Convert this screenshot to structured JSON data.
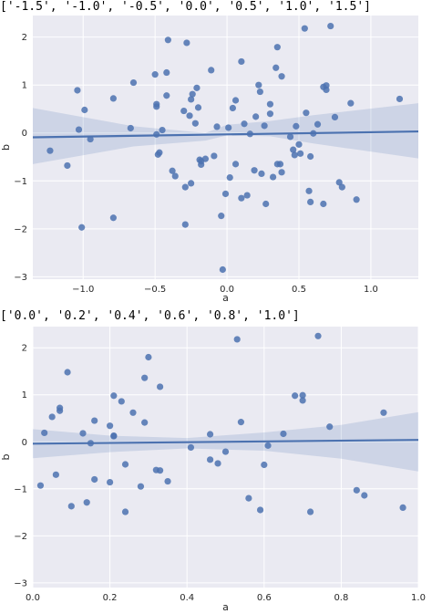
{
  "header_top": "['-1.5', '-1.0', '-0.5', '0.0', '0.5', '1.0', '1.5']",
  "header_bottom": "['0.0', '0.2', '0.4', '0.6', '0.8', '1.0']",
  "colors": {
    "background": "#EAEAF2",
    "grid": "#FFFFFF",
    "points": "#4C72B0",
    "line": "#4C72B0",
    "band": "#4C72B0"
  },
  "chart_data": [
    {
      "type": "scatter",
      "title": "",
      "xlabel": "a",
      "ylabel": "b",
      "xlim": [
        -1.35,
        1.33
      ],
      "ylim": [
        -3.05,
        2.45
      ],
      "xticks": [
        -1.0,
        -0.5,
        0.0,
        0.5,
        1.0
      ],
      "xtick_labels": [
        "−1.0",
        "−0.5",
        "0.0",
        "0.5",
        "1.0"
      ],
      "yticks": [
        -3,
        -2,
        -1,
        0,
        1,
        2
      ],
      "ytick_labels": [
        "−3",
        "−2",
        "−1",
        "0",
        "1",
        "2"
      ],
      "grid": true,
      "regression": {
        "x0": -1.35,
        "x1": 1.33,
        "y0": -0.09,
        "y1": 0.03,
        "band": [
          [
            -1.35,
            -0.65,
            0.52
          ],
          [
            -0.65,
            -0.28,
            0.14
          ],
          [
            -0.15,
            -0.16,
            0.0
          ],
          [
            0.0,
            -0.05,
            0.17
          ],
          [
            0.3,
            -0.07,
            0.25
          ],
          [
            0.6,
            -0.22,
            0.37
          ],
          [
            1.33,
            -0.53,
            0.62
          ]
        ]
      },
      "points": [
        [
          -1.23,
          -0.37
        ],
        [
          -1.11,
          -0.68
        ],
        [
          -1.04,
          0.89
        ],
        [
          -1.03,
          0.07
        ],
        [
          -1.01,
          -1.97
        ],
        [
          -0.99,
          0.48
        ],
        [
          -0.95,
          -0.13
        ],
        [
          -0.79,
          0.72
        ],
        [
          -0.79,
          -1.77
        ],
        [
          -0.67,
          0.1
        ],
        [
          -0.65,
          1.05
        ],
        [
          -0.5,
          1.22
        ],
        [
          -0.49,
          0.6
        ],
        [
          -0.49,
          0.55
        ],
        [
          -0.48,
          -0.45
        ],
        [
          -0.49,
          -0.03
        ],
        [
          -0.47,
          -0.41
        ],
        [
          -0.45,
          0.06
        ],
        [
          -0.42,
          0.78
        ],
        [
          -0.42,
          1.26
        ],
        [
          -0.41,
          1.94
        ],
        [
          -0.38,
          -0.79
        ],
        [
          -0.36,
          -0.9
        ],
        [
          -0.3,
          0.46
        ],
        [
          -0.29,
          -1.13
        ],
        [
          -0.29,
          -1.91
        ],
        [
          -0.28,
          1.88
        ],
        [
          -0.26,
          0.36
        ],
        [
          -0.25,
          0.7
        ],
        [
          -0.25,
          -1.05
        ],
        [
          -0.24,
          0.81
        ],
        [
          -0.22,
          0.2
        ],
        [
          -0.21,
          0.94
        ],
        [
          -0.2,
          0.53
        ],
        [
          -0.19,
          -0.56
        ],
        [
          -0.18,
          -0.66
        ],
        [
          -0.18,
          -0.59
        ],
        [
          -0.15,
          -0.54
        ],
        [
          -0.11,
          1.31
        ],
        [
          -0.09,
          -0.48
        ],
        [
          -0.07,
          0.13
        ],
        [
          -0.04,
          -1.73
        ],
        [
          -0.03,
          -2.85
        ],
        [
          -0.01,
          -1.27
        ],
        [
          0.01,
          0.11
        ],
        [
          0.02,
          -0.93
        ],
        [
          0.04,
          0.52
        ],
        [
          0.06,
          0.68
        ],
        [
          0.06,
          -0.65
        ],
        [
          0.1,
          1.49
        ],
        [
          0.1,
          -1.36
        ],
        [
          0.12,
          0.19
        ],
        [
          0.14,
          -1.3
        ],
        [
          0.16,
          -0.02
        ],
        [
          0.19,
          -0.78
        ],
        [
          0.2,
          0.34
        ],
        [
          0.22,
          1.0
        ],
        [
          0.23,
          0.86
        ],
        [
          0.24,
          -0.85
        ],
        [
          0.26,
          0.15
        ],
        [
          0.27,
          -1.48
        ],
        [
          0.3,
          0.4
        ],
        [
          0.3,
          0.6
        ],
        [
          0.32,
          -0.92
        ],
        [
          0.34,
          1.36
        ],
        [
          0.35,
          1.79
        ],
        [
          0.35,
          -0.65
        ],
        [
          0.37,
          -0.65
        ],
        [
          0.38,
          1.18
        ],
        [
          0.38,
          -0.82
        ],
        [
          0.44,
          -0.08
        ],
        [
          0.46,
          -0.35
        ],
        [
          0.47,
          -0.46
        ],
        [
          0.48,
          0.14
        ],
        [
          0.5,
          -0.24
        ],
        [
          0.51,
          -0.43
        ],
        [
          0.54,
          2.18
        ],
        [
          0.55,
          0.42
        ],
        [
          0.57,
          -1.21
        ],
        [
          0.58,
          -1.44
        ],
        [
          0.58,
          -0.49
        ],
        [
          0.6,
          -0.01
        ],
        [
          0.63,
          0.18
        ],
        [
          0.67,
          -1.48
        ],
        [
          0.67,
          0.96
        ],
        [
          0.69,
          0.99
        ],
        [
          0.69,
          0.9
        ],
        [
          0.72,
          2.23
        ],
        [
          0.75,
          0.33
        ],
        [
          0.78,
          -1.03
        ],
        [
          0.8,
          -1.13
        ],
        [
          0.86,
          0.62
        ],
        [
          0.9,
          -1.39
        ],
        [
          1.2,
          0.71
        ]
      ]
    },
    {
      "type": "scatter",
      "title": "",
      "xlabel": "a",
      "ylabel": "b",
      "xlim": [
        0.0,
        1.0
      ],
      "ylim": [
        -3.1,
        2.45
      ],
      "xticks": [
        0.0,
        0.2,
        0.4,
        0.6,
        0.8,
        1.0
      ],
      "xtick_labels": [
        "0.0",
        "0.2",
        "0.4",
        "0.6",
        "0.8",
        "1.0"
      ],
      "yticks": [
        -3,
        -2,
        -1,
        0,
        1,
        2
      ],
      "ytick_labels": [
        "−3",
        "−2",
        "−1",
        "0",
        "1",
        "2"
      ],
      "grid": true,
      "regression": {
        "x0": 0.0,
        "x1": 1.0,
        "y0": -0.04,
        "y1": 0.04,
        "band": [
          [
            0.0,
            -0.35,
            0.27
          ],
          [
            0.2,
            -0.22,
            0.13
          ],
          [
            0.4,
            -0.14,
            0.08
          ],
          [
            0.6,
            -0.19,
            0.2
          ],
          [
            0.8,
            -0.36,
            0.36
          ],
          [
            1.0,
            -0.63,
            0.63
          ]
        ]
      },
      "points": [
        [
          0.02,
          -0.93
        ],
        [
          0.03,
          0.19
        ],
        [
          0.05,
          0.53
        ],
        [
          0.06,
          -0.7
        ],
        [
          0.07,
          0.72
        ],
        [
          0.07,
          0.66
        ],
        [
          0.09,
          1.48
        ],
        [
          0.1,
          -1.37
        ],
        [
          0.13,
          0.18
        ],
        [
          0.14,
          -1.29
        ],
        [
          0.15,
          -0.03
        ],
        [
          0.16,
          0.45
        ],
        [
          0.16,
          -0.8
        ],
        [
          0.2,
          0.34
        ],
        [
          0.2,
          -0.86
        ],
        [
          0.21,
          0.98
        ],
        [
          0.21,
          0.13
        ],
        [
          0.21,
          0.12
        ],
        [
          0.23,
          0.86
        ],
        [
          0.24,
          -1.49
        ],
        [
          0.24,
          -0.48
        ],
        [
          0.26,
          0.62
        ],
        [
          0.28,
          -0.95
        ],
        [
          0.29,
          0.41
        ],
        [
          0.29,
          1.36
        ],
        [
          0.3,
          1.8
        ],
        [
          0.32,
          -0.6
        ],
        [
          0.33,
          1.17
        ],
        [
          0.33,
          -0.61
        ],
        [
          0.35,
          -0.84
        ],
        [
          0.41,
          -0.12
        ],
        [
          0.46,
          -0.38
        ],
        [
          0.46,
          0.16
        ],
        [
          0.48,
          -0.46
        ],
        [
          0.5,
          -0.21
        ],
        [
          0.53,
          2.18
        ],
        [
          0.54,
          0.42
        ],
        [
          0.56,
          -1.2
        ],
        [
          0.59,
          -1.45
        ],
        [
          0.6,
          -0.49
        ],
        [
          0.61,
          -0.08
        ],
        [
          0.65,
          0.17
        ],
        [
          0.68,
          0.98
        ],
        [
          0.7,
          0.99
        ],
        [
          0.7,
          0.88
        ],
        [
          0.72,
          -1.49
        ],
        [
          0.74,
          2.25
        ],
        [
          0.77,
          0.32
        ],
        [
          0.84,
          -1.03
        ],
        [
          0.86,
          -1.14
        ],
        [
          0.91,
          0.62
        ],
        [
          0.96,
          -1.4
        ]
      ]
    }
  ]
}
